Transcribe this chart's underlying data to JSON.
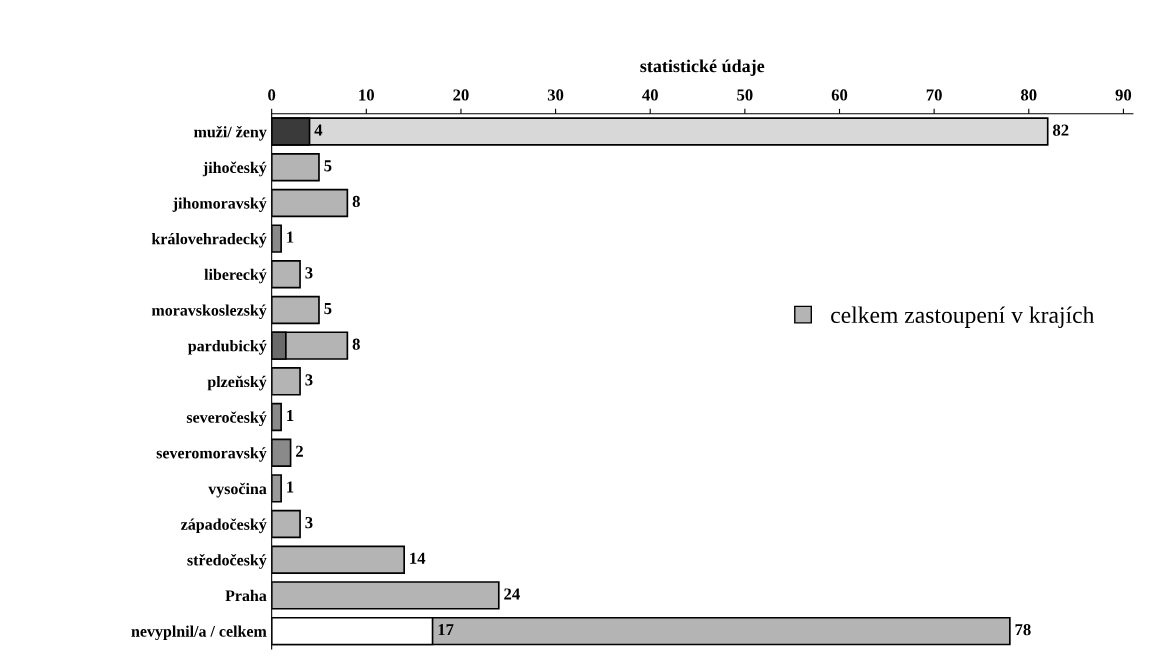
{
  "chart_data": {
    "type": "bar",
    "orientation": "horizontal",
    "title": "statistické údaje",
    "categories": [
      "muži/ ženy",
      "jihočeský",
      "jihomoravský",
      "královehradecký",
      "liberecký",
      "moravskoslezský",
      "pardubický",
      "plzeňský",
      "severočeský",
      "severomoravský",
      "vysočina",
      "západočeský",
      "středočeský",
      "Praha",
      "nevyplnil/a / celkem"
    ],
    "series": [
      {
        "name": "celkem zastoupení v krajích",
        "color": "#b4b4b4",
        "colors": [
          "#d8d8d8",
          "#b4b4b4",
          "#b4b4b4",
          "#8a8a8a",
          "#b4b4b4",
          "#b4b4b4",
          "#b4b4b4",
          "#b4b4b4",
          "#8a8a8a",
          "#8a8a8a",
          "#9a9a9a",
          "#b4b4b4",
          "#b4b4b4",
          "#b4b4b4",
          "#b4b4b4"
        ],
        "values": [
          82,
          5,
          8,
          1,
          3,
          5,
          8,
          3,
          1,
          2,
          1,
          3,
          14,
          24,
          78
        ],
        "value_labels": [
          "82",
          "5",
          "8",
          "1",
          "3",
          "5",
          "8",
          "3",
          "1",
          "2",
          "1",
          "3",
          "14",
          "24",
          "78"
        ]
      },
      {
        "colors": [
          "#3a3a3a",
          null,
          null,
          null,
          null,
          null,
          "#6a6a6a",
          null,
          null,
          null,
          null,
          null,
          null,
          null,
          "#ffffff"
        ],
        "values": [
          4,
          null,
          null,
          null,
          null,
          null,
          1.5,
          null,
          null,
          null,
          null,
          null,
          null,
          null,
          17
        ],
        "value_labels": [
          "4",
          null,
          null,
          null,
          null,
          null,
          null,
          null,
          null,
          null,
          null,
          null,
          null,
          null,
          "17"
        ]
      }
    ],
    "xlim": [
      0,
      91
    ],
    "xticks": [
      0,
      10,
      20,
      30,
      40,
      50,
      60,
      70,
      80,
      90
    ],
    "grid": false,
    "legend": "right"
  }
}
